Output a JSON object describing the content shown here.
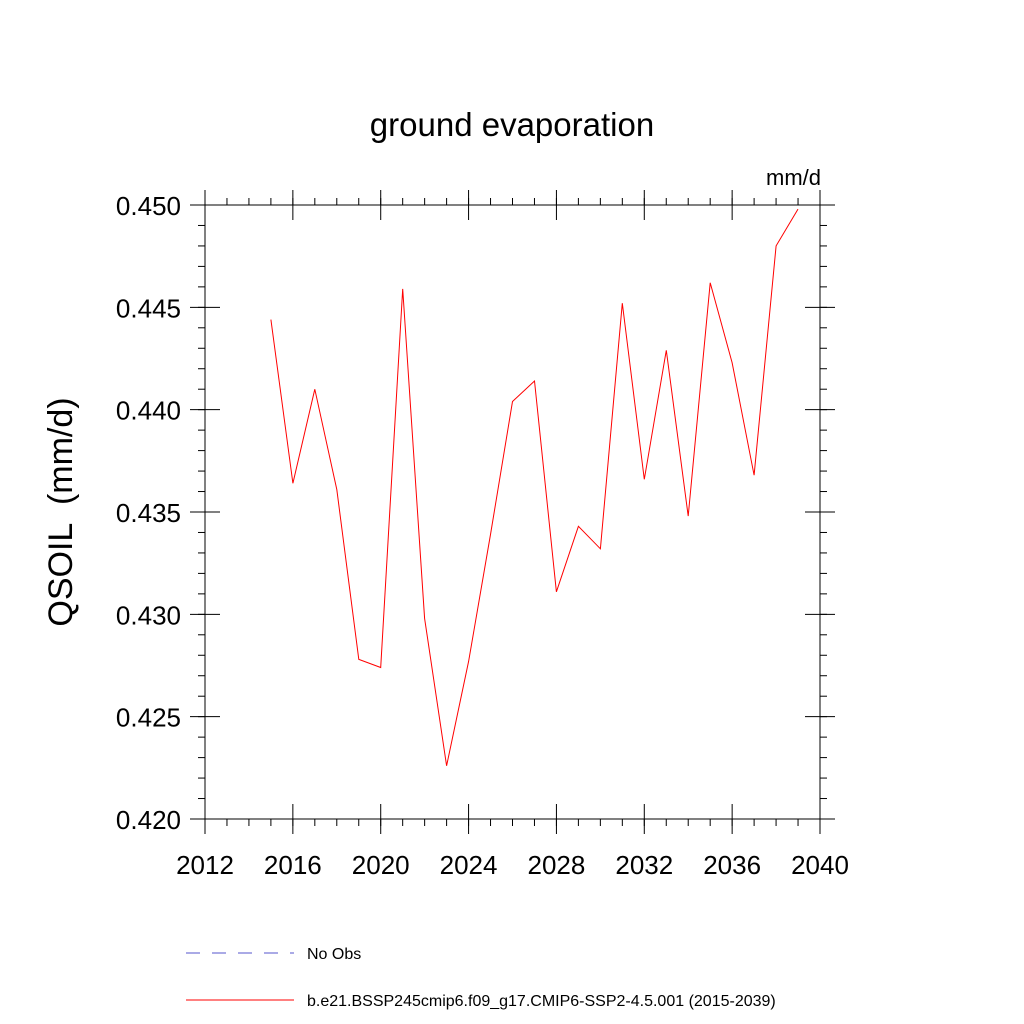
{
  "chart_data": {
    "type": "line",
    "title": "ground evaporation",
    "units_label": "mm/d",
    "ylabel": "QSOIL  (mm/d)",
    "xlabel": "",
    "xlim": [
      2012,
      2040
    ],
    "ylim": [
      0.42,
      0.45
    ],
    "x_ticks": [
      2012,
      2016,
      2020,
      2024,
      2028,
      2032,
      2036,
      2040
    ],
    "x_tick_labels": [
      "2012",
      "2016",
      "2020",
      "2024",
      "2028",
      "2032",
      "2036",
      "2040"
    ],
    "y_ticks": [
      0.42,
      0.425,
      0.43,
      0.435,
      0.44,
      0.445,
      0.45
    ],
    "y_tick_labels": [
      "0.420",
      "0.425",
      "0.430",
      "0.435",
      "0.440",
      "0.445",
      "0.450"
    ],
    "grid": false,
    "legend_position": "bottom",
    "series": [
      {
        "name": "b.e21.BSSP245cmip6.f09_g17.CMIP6-SSP2-4.5.001 (2015-2039)",
        "color": "#ff0000",
        "style": "solid",
        "x": [
          2015,
          2016,
          2017,
          2018,
          2019,
          2020,
          2021,
          2022,
          2023,
          2024,
          2025,
          2026,
          2027,
          2028,
          2029,
          2030,
          2031,
          2032,
          2033,
          2034,
          2035,
          2036,
          2037,
          2038,
          2039
        ],
        "values": [
          0.4444,
          0.4364,
          0.441,
          0.4361,
          0.4278,
          0.4274,
          0.4459,
          0.4298,
          0.4226,
          0.4277,
          0.4339,
          0.4404,
          0.4414,
          0.4311,
          0.4343,
          0.4332,
          0.4452,
          0.4366,
          0.4429,
          0.4348,
          0.4462,
          0.4423,
          0.4368,
          0.448,
          0.4498
        ]
      }
    ],
    "legend": [
      {
        "label": "No Obs",
        "color": "#5555cc",
        "style": "dashed"
      },
      {
        "label": "b.e21.BSSP245cmip6.f09_g17.CMIP6-SSP2-4.5.001 (2015-2039)",
        "color": "#ff0000",
        "style": "solid"
      }
    ]
  }
}
